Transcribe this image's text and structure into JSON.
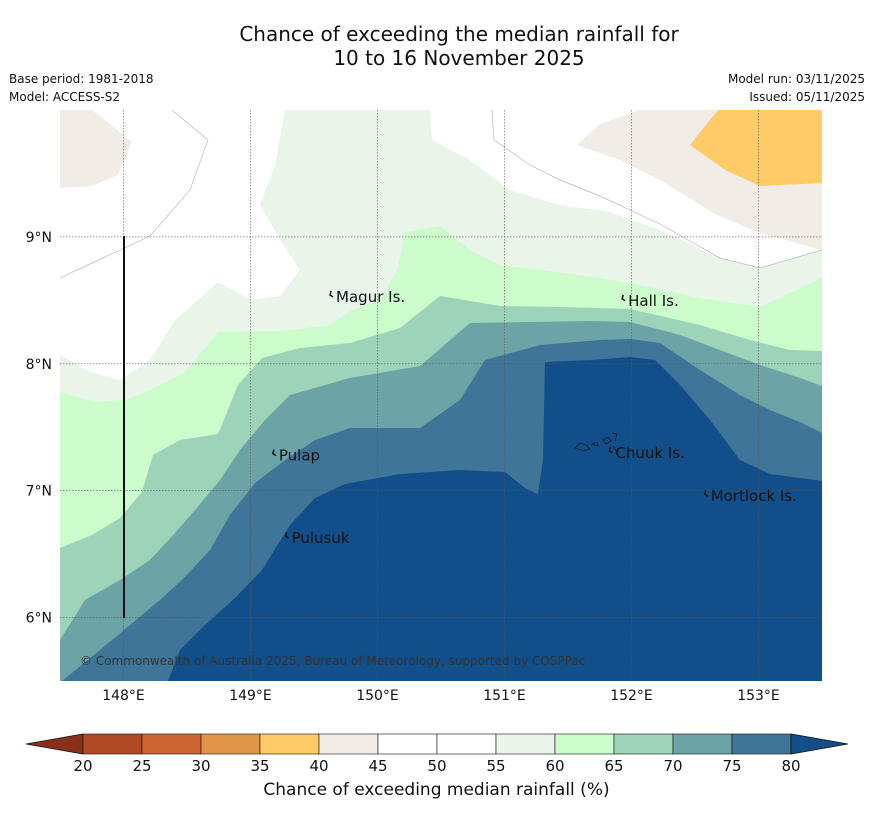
{
  "title": {
    "line1": "Chance of exceeding the median rainfall for",
    "line2": "10 to 16 November 2025"
  },
  "meta": {
    "base_period": "Base period: 1981-2018",
    "model": "Model: ACCESS-S2",
    "model_run": "Model run: 03/11/2025",
    "issued": "Issued: 05/11/2025"
  },
  "map": {
    "extent": {
      "lon_min": 147.5,
      "lon_max": 153.5,
      "lat_min": 5.5,
      "lat_max": 10
    },
    "x_ticks": [
      {
        "value": 148,
        "label": "148°E"
      },
      {
        "value": 149,
        "label": "149°E"
      },
      {
        "value": 150,
        "label": "150°E"
      },
      {
        "value": 151,
        "label": "151°E"
      },
      {
        "value": 152,
        "label": "152°E"
      },
      {
        "value": 153,
        "label": "153°E"
      }
    ],
    "y_ticks": [
      {
        "value": 9,
        "label": "9°N"
      },
      {
        "value": 8,
        "label": "8°N"
      },
      {
        "value": 7,
        "label": "7°N"
      },
      {
        "value": 6,
        "label": "6°N"
      }
    ],
    "places": [
      {
        "name": "Magur Is.",
        "lon": 149.65,
        "lat": 8.55
      },
      {
        "name": "Hall Is.",
        "lon": 151.95,
        "lat": 8.52
      },
      {
        "name": "Pulap",
        "lon": 149.2,
        "lat": 7.3
      },
      {
        "name": "Chuuk Is.",
        "lon": 151.85,
        "lat": 7.32
      },
      {
        "name": "Mortlock Is.",
        "lon": 152.6,
        "lat": 6.98
      },
      {
        "name": "Pulusuk",
        "lon": 149.3,
        "lat": 6.65
      }
    ],
    "copyright": "© Commonwealth of Australia 2025, Bureau of Meteorology, supported by COSPPac"
  },
  "colorbar": {
    "label": "Chance of exceeding median rainfall (%)",
    "ticks": [
      "20",
      "25",
      "30",
      "35",
      "40",
      "45",
      "50",
      "55",
      "60",
      "65",
      "70",
      "75",
      "80"
    ],
    "under_color": "#8a3018",
    "over_color": "#124e89",
    "colors": [
      "#b04a25",
      "#cf6631",
      "#e09548",
      "#ffcb66",
      "#f1ece6",
      "#ffffff",
      "#ffffff",
      "#eaf5ea",
      "#ccfccb",
      "#9dd3b9",
      "#6ca3a6",
      "#3f7598"
    ]
  },
  "levels": {
    "c40": "#f1ece6",
    "c35": "#ffcb66",
    "c55": "#ffffff",
    "c60": "#eaf5ea",
    "c65": "#ccfccb",
    "c70": "#9dd3b9",
    "c75": "#6ca3a6",
    "c80": "#3f7598",
    "c85": "#124e89"
  }
}
